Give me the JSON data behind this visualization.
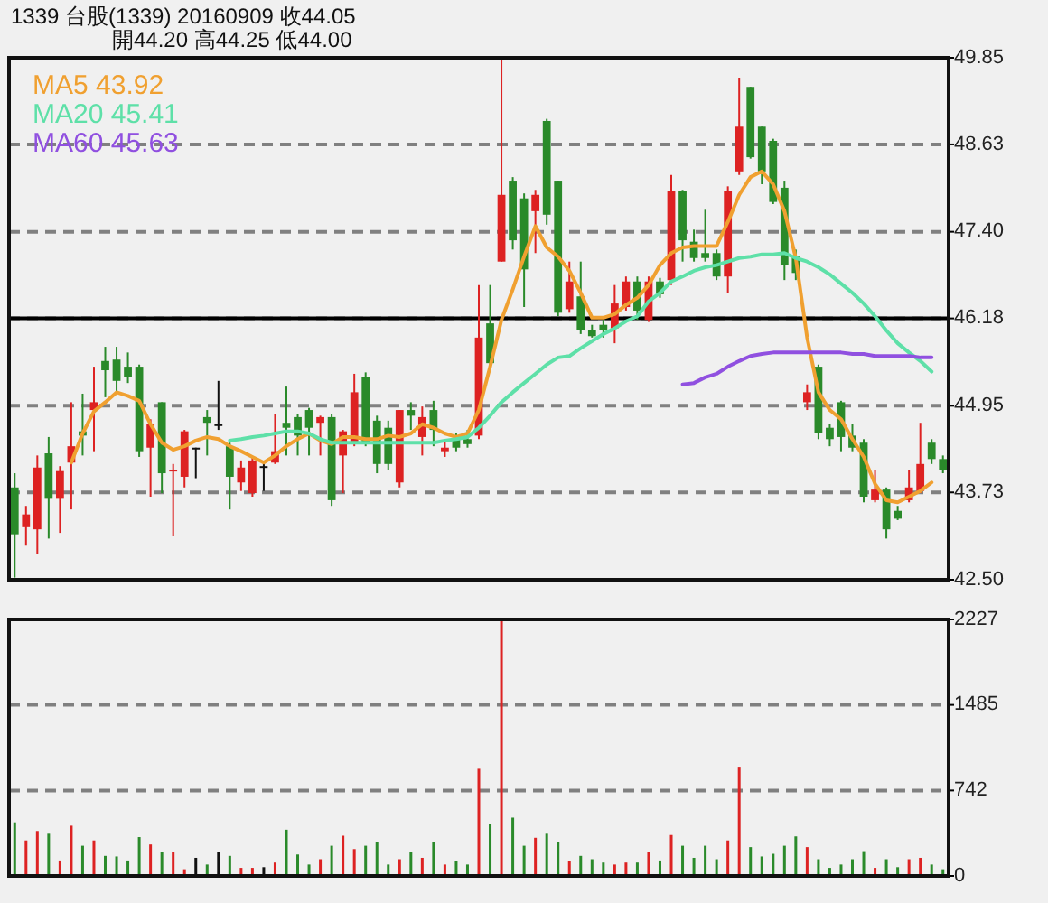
{
  "chart_data": [
    {
      "type": "candlestick",
      "title": "1339 台股(1339) 20160909 收44.05",
      "subtitle": "開44.20 高44.25 低44.00",
      "categories": [
        null,
        null,
        null,
        null,
        null,
        null,
        null,
        null,
        null,
        null,
        null,
        null,
        null,
        null,
        null,
        null,
        null,
        null,
        null,
        null,
        null,
        null,
        null,
        null,
        null,
        null,
        null,
        null,
        null,
        null,
        null,
        null,
        null,
        null,
        null,
        null,
        null,
        null,
        null,
        null,
        null,
        null,
        null,
        null,
        null,
        null,
        null,
        null,
        null,
        null,
        null,
        null,
        null,
        null,
        null,
        null,
        null,
        null,
        null,
        null,
        null,
        null,
        null,
        null,
        null,
        null,
        null,
        null,
        null,
        null,
        null,
        null,
        null,
        null,
        null,
        null,
        null,
        null,
        null,
        null,
        null,
        null,
        null
      ],
      "ohlc": [
        [
          43.8,
          44.0,
          42.53,
          43.14
        ],
        [
          43.24,
          43.54,
          42.98,
          43.42
        ],
        [
          43.21,
          44.25,
          42.86,
          44.08
        ],
        [
          44.28,
          44.51,
          43.08,
          43.64
        ],
        [
          43.64,
          44.1,
          43.16,
          44.03
        ],
        [
          44.15,
          45.0,
          43.49,
          44.38
        ],
        [
          44.59,
          45.12,
          44.25,
          44.53
        ],
        [
          44.89,
          45.5,
          44.31,
          45.0
        ],
        [
          45.58,
          45.78,
          45.07,
          45.45
        ],
        [
          45.6,
          45.78,
          45.12,
          45.3
        ],
        [
          45.5,
          45.7,
          45.27,
          45.35
        ],
        [
          45.5,
          45.53,
          44.23,
          44.31
        ],
        [
          44.36,
          44.76,
          43.67,
          44.69
        ],
        [
          45.0,
          45.0,
          43.72,
          44.0
        ],
        [
          44.03,
          44.13,
          43.11,
          44.05
        ],
        [
          43.95,
          44.61,
          43.8,
          44.59
        ],
        [
          44.36,
          44.36,
          43.93,
          44.36
        ],
        [
          44.79,
          44.89,
          44.25,
          44.71
        ],
        [
          44.69,
          45.3,
          44.61,
          44.69
        ],
        [
          44.38,
          44.43,
          43.49,
          43.95
        ],
        [
          43.87,
          44.18,
          43.75,
          44.08
        ],
        [
          43.72,
          44.23,
          43.67,
          44.18
        ],
        [
          44.1,
          44.15,
          43.75,
          44.1
        ],
        [
          44.15,
          44.84,
          44.13,
          44.31
        ],
        [
          44.71,
          45.22,
          44.25,
          44.64
        ],
        [
          44.79,
          44.84,
          44.25,
          44.53
        ],
        [
          44.89,
          44.92,
          44.25,
          44.64
        ],
        [
          44.71,
          44.81,
          44.25,
          44.79
        ],
        [
          44.79,
          44.84,
          43.54,
          43.62
        ],
        [
          44.25,
          44.61,
          43.72,
          44.59
        ],
        [
          44.43,
          45.4,
          44.38,
          45.14
        ],
        [
          45.35,
          45.42,
          44.38,
          44.43
        ],
        [
          44.74,
          44.81,
          44.0,
          44.13
        ],
        [
          44.64,
          44.74,
          44.05,
          44.13
        ],
        [
          43.87,
          44.89,
          43.8,
          44.89
        ],
        [
          44.89,
          45.0,
          44.61,
          44.81
        ],
        [
          44.51,
          44.94,
          44.25,
          44.79
        ],
        [
          44.89,
          45.02,
          44.38,
          44.61
        ],
        [
          44.31,
          44.48,
          44.23,
          44.36
        ],
        [
          44.48,
          44.56,
          44.31,
          44.36
        ],
        [
          44.48,
          44.61,
          44.36,
          44.41
        ],
        [
          44.53,
          46.65,
          44.48,
          45.91
        ],
        [
          46.11,
          46.65,
          45.48,
          45.55
        ],
        [
          46.98,
          49.85,
          46.98,
          47.92
        ],
        [
          48.12,
          48.17,
          47.15,
          47.28
        ],
        [
          47.87,
          47.94,
          46.34,
          46.87
        ],
        [
          47.69,
          47.99,
          47.1,
          47.92
        ],
        [
          48.96,
          48.99,
          47.5,
          47.64
        ],
        [
          48.12,
          48.12,
          46.21,
          46.26
        ],
        [
          46.31,
          46.98,
          46.26,
          46.7
        ],
        [
          46.49,
          46.98,
          45.96,
          46.01
        ],
        [
          46.01,
          46.09,
          45.91,
          45.93
        ],
        [
          46.09,
          46.16,
          45.91,
          46.01
        ],
        [
          46.04,
          46.65,
          45.83,
          46.39
        ],
        [
          46.34,
          46.77,
          46.29,
          46.7
        ],
        [
          46.7,
          46.77,
          46.16,
          46.29
        ],
        [
          46.16,
          46.77,
          46.13,
          46.7
        ],
        [
          46.7,
          46.75,
          46.47,
          46.52
        ],
        [
          46.72,
          48.2,
          46.65,
          47.97
        ],
        [
          47.97,
          47.99,
          46.98,
          47.28
        ],
        [
          47.26,
          47.43,
          46.98,
          47.03
        ],
        [
          47.1,
          47.71,
          46.98,
          47.03
        ],
        [
          47.1,
          47.15,
          46.72,
          46.77
        ],
        [
          46.77,
          48.04,
          46.54,
          47.97
        ],
        [
          48.25,
          49.57,
          48.2,
          48.88
        ],
        [
          49.44,
          49.44,
          48.43,
          48.45
        ],
        [
          48.88,
          48.88,
          48.07,
          48.25
        ],
        [
          48.68,
          48.71,
          47.79,
          47.82
        ],
        [
          48.02,
          48.12,
          46.72,
          46.93
        ],
        [
          47.05,
          47.15,
          46.72,
          46.82
        ],
        [
          45.0,
          45.25,
          44.89,
          45.14
        ],
        [
          45.5,
          45.53,
          44.48,
          44.56
        ],
        [
          44.64,
          44.69,
          44.38,
          44.48
        ],
        [
          45.0,
          45.02,
          44.31,
          44.51
        ],
        [
          44.53,
          44.69,
          44.31,
          44.36
        ],
        [
          44.43,
          44.48,
          43.59,
          43.67
        ],
        [
          43.62,
          44.05,
          43.59,
          43.77
        ],
        [
          43.77,
          43.8,
          43.08,
          43.21
        ],
        [
          43.47,
          43.54,
          43.34,
          43.36
        ],
        [
          43.62,
          44.05,
          43.59,
          43.8
        ],
        [
          43.75,
          44.71,
          43.72,
          44.13
        ],
        [
          44.43,
          44.48,
          44.13,
          44.2
        ],
        [
          44.2,
          44.25,
          44.0,
          44.05
        ]
      ],
      "colors": [
        "#2a8a2a",
        "#dd2222",
        "#dd2222",
        "#2a8a2a",
        "#dd2222",
        "#dd2222",
        "#2a8a2a",
        "#dd2222",
        "#2a8a2a",
        "#2a8a2a",
        "#2a8a2a",
        "#2a8a2a",
        "#dd2222",
        "#2a8a2a",
        "#dd2222",
        "#dd2222",
        "#111111",
        "#2a8a2a",
        "#111111",
        "#2a8a2a",
        "#dd2222",
        "#dd2222",
        "#111111",
        "#dd2222",
        "#2a8a2a",
        "#2a8a2a",
        "#2a8a2a",
        "#dd2222",
        "#2a8a2a",
        "#dd2222",
        "#dd2222",
        "#2a8a2a",
        "#2a8a2a",
        "#2a8a2a",
        "#dd2222",
        "#2a8a2a",
        "#dd2222",
        "#2a8a2a",
        "#dd2222",
        "#2a8a2a",
        "#2a8a2a",
        "#dd2222",
        "#2a8a2a",
        "#dd2222",
        "#2a8a2a",
        "#2a8a2a",
        "#dd2222",
        "#2a8a2a",
        "#2a8a2a",
        "#dd2222",
        "#2a8a2a",
        "#2a8a2a",
        "#2a8a2a",
        "#dd2222",
        "#dd2222",
        "#2a8a2a",
        "#dd2222",
        "#2a8a2a",
        "#dd2222",
        "#2a8a2a",
        "#2a8a2a",
        "#2a8a2a",
        "#2a8a2a",
        "#dd2222",
        "#dd2222",
        "#2a8a2a",
        "#2a8a2a",
        "#2a8a2a",
        "#2a8a2a",
        "#2a8a2a",
        "#dd2222",
        "#2a8a2a",
        "#2a8a2a",
        "#2a8a2a",
        "#2a8a2a",
        "#2a8a2a",
        "#dd2222",
        "#2a8a2a",
        "#2a8a2a",
        "#dd2222",
        "#dd2222",
        "#2a8a2a",
        "#2a8a2a"
      ],
      "series": [
        {
          "type": "line",
          "name": "MA5 43.92",
          "color": "#f0a030",
          "values": [
            null,
            null,
            null,
            null,
            null,
            44.15,
            44.56,
            44.87,
            45.0,
            45.14,
            45.09,
            45.02,
            44.69,
            44.43,
            44.33,
            44.38,
            44.46,
            44.51,
            44.48,
            44.38,
            44.31,
            44.23,
            44.15,
            44.25,
            44.38,
            44.48,
            44.56,
            44.46,
            44.41,
            44.51,
            44.51,
            44.48,
            44.48,
            44.53,
            44.51,
            44.56,
            44.69,
            44.64,
            44.56,
            44.51,
            44.56,
            44.89,
            45.5,
            46.16,
            46.59,
            47.05,
            47.48,
            47.18,
            47.05,
            46.85,
            46.54,
            46.19,
            46.19,
            46.24,
            46.37,
            46.47,
            46.65,
            46.93,
            47.1,
            47.18,
            47.2,
            47.2,
            47.2,
            47.54,
            47.92,
            48.17,
            48.25,
            48.07,
            47.69,
            47.03,
            45.91,
            45.14,
            44.89,
            44.76,
            44.48,
            44.23,
            43.85,
            43.62,
            43.59,
            43.67,
            43.75,
            43.87,
            null
          ]
        },
        {
          "type": "line",
          "name": "MA20 45.41",
          "color": "#5ee0a8",
          "values": [
            null,
            null,
            null,
            null,
            null,
            null,
            null,
            null,
            null,
            null,
            null,
            null,
            null,
            null,
            null,
            null,
            null,
            null,
            null,
            44.46,
            44.48,
            44.51,
            44.53,
            44.56,
            44.59,
            44.59,
            44.56,
            44.48,
            44.43,
            44.43,
            44.43,
            44.43,
            44.43,
            44.43,
            44.43,
            44.43,
            44.43,
            44.43,
            44.46,
            44.48,
            44.51,
            44.64,
            44.81,
            45.0,
            45.14,
            45.27,
            45.4,
            45.53,
            45.63,
            45.65,
            45.76,
            45.86,
            45.96,
            46.04,
            46.14,
            46.21,
            46.42,
            46.54,
            46.7,
            46.77,
            46.85,
            46.9,
            46.93,
            46.98,
            47.03,
            47.05,
            47.08,
            47.08,
            47.1,
            47.03,
            46.98,
            46.9,
            46.8,
            46.67,
            46.54,
            46.39,
            46.21,
            46.01,
            45.83,
            45.7,
            45.58,
            45.43,
            null
          ]
        },
        {
          "type": "line",
          "name": "MA60 45.63",
          "color": "#9050e0",
          "values": [
            null,
            null,
            null,
            null,
            null,
            null,
            null,
            null,
            null,
            null,
            null,
            null,
            null,
            null,
            null,
            null,
            null,
            null,
            null,
            null,
            null,
            null,
            null,
            null,
            null,
            null,
            null,
            null,
            null,
            null,
            null,
            null,
            null,
            null,
            null,
            null,
            null,
            null,
            null,
            null,
            null,
            null,
            null,
            null,
            null,
            null,
            null,
            null,
            null,
            null,
            null,
            null,
            null,
            null,
            null,
            null,
            null,
            null,
            null,
            45.25,
            45.27,
            45.35,
            45.4,
            45.5,
            45.58,
            45.65,
            45.68,
            45.7,
            45.7,
            45.7,
            45.7,
            45.7,
            45.7,
            45.7,
            45.68,
            45.68,
            45.65,
            45.65,
            45.65,
            45.65,
            45.63,
            45.63,
            null
          ]
        }
      ],
      "ylim": [
        42.5,
        49.85
      ],
      "yticks": [
        {
          "value": 42.5,
          "label": "42.50"
        },
        43.73,
        44.95,
        46.18,
        {
          "value": 47.4,
          "label": "47.40"
        },
        48.63,
        49.85
      ],
      "grid": "y",
      "ref_lines": [
        {
          "axis": "y",
          "value": 46.18,
          "color": "#000000"
        }
      ],
      "legend": "top left"
    },
    {
      "type": "bar",
      "categories": [
        null,
        null,
        null,
        null,
        null,
        null,
        null,
        null,
        null,
        null,
        null,
        null,
        null,
        null,
        null,
        null,
        null,
        null,
        null,
        null,
        null,
        null,
        null,
        null,
        null,
        null,
        null,
        null,
        null,
        null,
        null,
        null,
        null,
        null,
        null,
        null,
        null,
        null,
        null,
        null,
        null,
        null,
        null,
        null,
        null,
        null,
        null,
        null,
        null,
        null,
        null,
        null,
        null,
        null,
        null,
        null,
        null,
        null,
        null,
        null,
        null,
        null,
        null,
        null,
        null,
        null,
        null,
        null,
        null,
        null,
        null,
        null,
        null,
        null,
        null,
        null,
        null,
        null,
        null,
        null,
        null,
        null,
        null
      ],
      "values": [
        465,
        308,
        390,
        366,
        134,
        436,
        262,
        308,
        174,
        169,
        134,
        337,
        273,
        204,
        204,
        58,
        157,
        99,
        204,
        174,
        70,
        70,
        76,
        116,
        401,
        186,
        99,
        145,
        262,
        349,
        233,
        262,
        291,
        99,
        145,
        204,
        157,
        291,
        99,
        128,
        99,
        930,
        454,
        2227,
        506,
        262,
        331,
        366,
        297,
        128,
        174,
        145,
        116,
        99,
        116,
        116,
        204,
        134,
        355,
        262,
        157,
        262,
        145,
        308,
        948,
        250,
        169,
        192,
        262,
        343,
        250,
        145,
        70,
        99,
        145,
        215,
        70,
        145,
        76,
        145,
        157,
        99,
        58
      ],
      "colors": [
        "#2a8a2a",
        "#dd2222",
        "#dd2222",
        "#2a8a2a",
        "#dd2222",
        "#dd2222",
        "#2a8a2a",
        "#dd2222",
        "#2a8a2a",
        "#2a8a2a",
        "#2a8a2a",
        "#2a8a2a",
        "#dd2222",
        "#2a8a2a",
        "#dd2222",
        "#dd2222",
        "#111111",
        "#2a8a2a",
        "#111111",
        "#2a8a2a",
        "#dd2222",
        "#dd2222",
        "#111111",
        "#dd2222",
        "#2a8a2a",
        "#2a8a2a",
        "#2a8a2a",
        "#dd2222",
        "#2a8a2a",
        "#dd2222",
        "#dd2222",
        "#2a8a2a",
        "#2a8a2a",
        "#2a8a2a",
        "#dd2222",
        "#2a8a2a",
        "#dd2222",
        "#2a8a2a",
        "#dd2222",
        "#2a8a2a",
        "#2a8a2a",
        "#dd2222",
        "#2a8a2a",
        "#dd2222",
        "#2a8a2a",
        "#2a8a2a",
        "#dd2222",
        "#2a8a2a",
        "#2a8a2a",
        "#dd2222",
        "#2a8a2a",
        "#2a8a2a",
        "#2a8a2a",
        "#dd2222",
        "#dd2222",
        "#2a8a2a",
        "#dd2222",
        "#2a8a2a",
        "#dd2222",
        "#2a8a2a",
        "#2a8a2a",
        "#2a8a2a",
        "#2a8a2a",
        "#dd2222",
        "#dd2222",
        "#2a8a2a",
        "#2a8a2a",
        "#2a8a2a",
        "#2a8a2a",
        "#2a8a2a",
        "#dd2222",
        "#2a8a2a",
        "#2a8a2a",
        "#2a8a2a",
        "#2a8a2a",
        "#2a8a2a",
        "#dd2222",
        "#2a8a2a",
        "#2a8a2a",
        "#dd2222",
        "#dd2222",
        "#2a8a2a",
        "#2a8a2a"
      ],
      "ylim": [
        0,
        2227
      ],
      "yticks": [
        0,
        742,
        1485,
        2227
      ],
      "grid": "y"
    }
  ]
}
